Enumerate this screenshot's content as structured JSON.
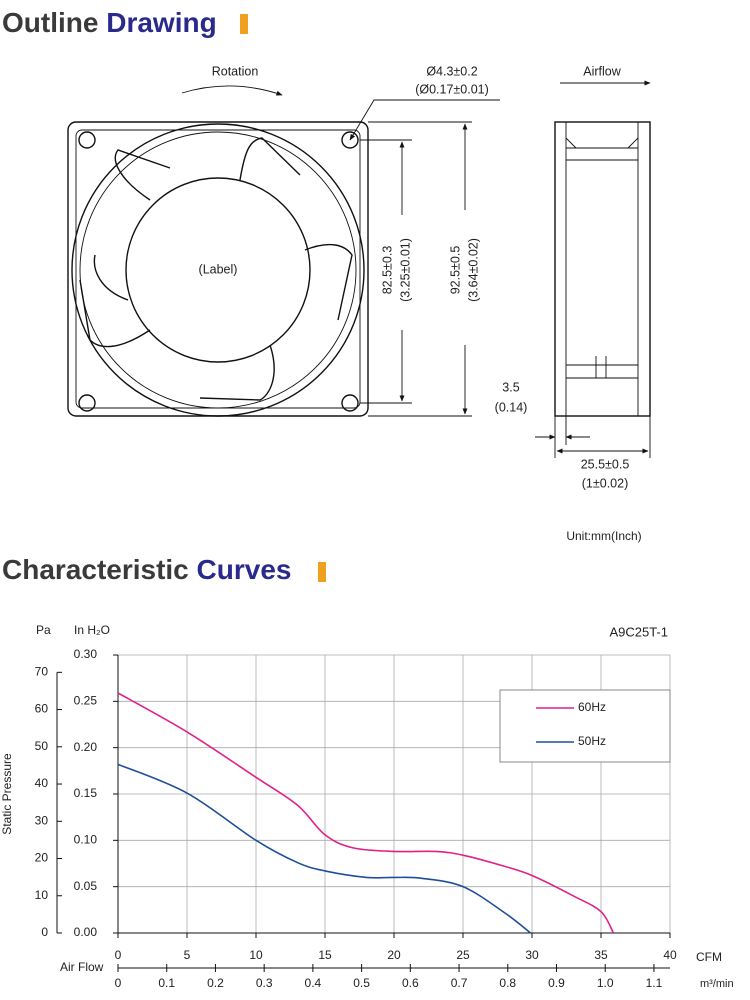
{
  "outline": {
    "title_1": "Outline",
    "title_2": "Drawing"
  },
  "drawing": {
    "rotation": "Rotation",
    "hole_mm": "Ø4.3±0.2",
    "hole_inch": "(Ø0.17±0.01)",
    "label": "(Label)",
    "pitch_mm": "82.5±0.3",
    "pitch_inch": "(3.25±0.01)",
    "size_mm": "92.5±0.5",
    "size_inch": "(3.64±0.02)",
    "airflow": "Airflow",
    "flange_mm": "3.5",
    "flange_inch": "(0.14)",
    "depth_mm": "25.5±0.5",
    "depth_inch": "(1±0.02)",
    "unit": "Unit:mm(Inch)"
  },
  "curves": {
    "title_1": "Characteristic",
    "title_2": "Curves"
  },
  "chart_data": {
    "type": "line",
    "model": "A9C25T-1",
    "y_label": "Static Pressure",
    "y_unit": "In H₂O",
    "y2_unit": "Pa",
    "x_unit": "CFM",
    "x2_label": "Air Flow",
    "x2_unit": "m³/min",
    "xlim": [
      0,
      40
    ],
    "xticks": [
      0,
      5,
      10,
      15,
      20,
      25,
      30,
      35,
      40
    ],
    "x2lim": [
      0,
      1.133
    ],
    "x2ticks": [
      0,
      0.1,
      0.2,
      0.3,
      0.4,
      0.5,
      0.6,
      0.7,
      0.8,
      0.9,
      {
        "value": 1,
        "label": "1.0"
      },
      1.1
    ],
    "ylim": [
      0,
      0.3
    ],
    "yticks": [
      {
        "value": 0,
        "label": "0.00"
      },
      0.05,
      {
        "value": 0.1,
        "label": "0.10"
      },
      0.15,
      {
        "value": 0.2,
        "label": "0.20"
      },
      0.25,
      {
        "value": 0.3,
        "label": "0.30"
      }
    ],
    "y2lim": [
      0,
      74.65
    ],
    "y2ticks": [
      0,
      10,
      20,
      30,
      40,
      50,
      60,
      70
    ],
    "grid": true,
    "legend": "upper right",
    "series": [
      {
        "name": "60Hz",
        "color": "#e0218a",
        "x": [
          0,
          5,
          10,
          13,
          15,
          17,
          20,
          23,
          25,
          28,
          30,
          33,
          35,
          35.9
        ],
        "values": [
          0.259,
          0.217,
          0.168,
          0.138,
          0.106,
          0.092,
          0.088,
          0.088,
          0.084,
          0.072,
          0.062,
          0.04,
          0.023,
          0
        ]
      },
      {
        "name": "50Hz",
        "color": "#1f4e9a",
        "x": [
          0,
          5,
          10,
          13,
          15,
          18,
          20,
          22,
          25,
          28,
          29.9
        ],
        "values": [
          0.182,
          0.151,
          0.1,
          0.076,
          0.067,
          0.06,
          0.06,
          0.059,
          0.05,
          0.022,
          0
        ]
      }
    ]
  }
}
